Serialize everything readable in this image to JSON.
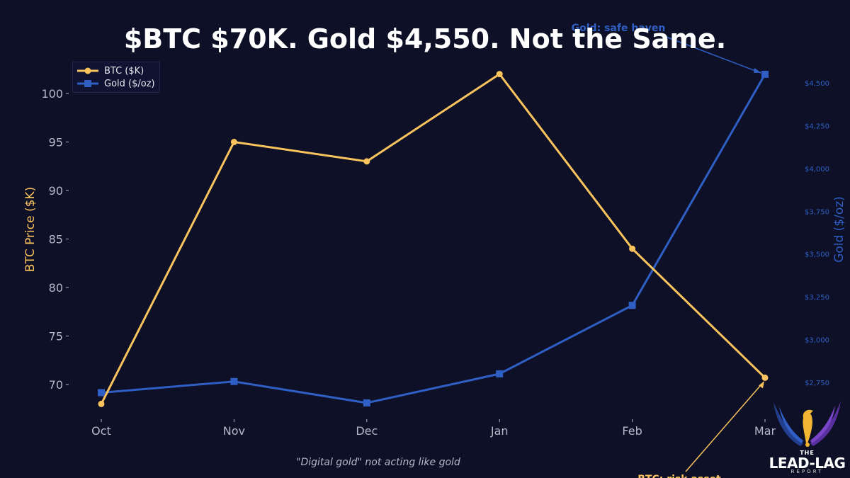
{
  "title": "$BTC $70K. Gold $4,550. Not the Same.",
  "footer_note": "\"Digital gold\" not acting like gold",
  "logo": {
    "the": "THE",
    "main": "LEAD-LAG",
    "report": "REPORT"
  },
  "colors": {
    "background": "#0e1027",
    "btc": "#f9c35e",
    "gold": "#2f5fc4",
    "tick_text": "#b6b8c8",
    "title": "#ffffff"
  },
  "chart_data": {
    "type": "line",
    "title": "$BTC $70K. Gold $4,550. Not the Same.",
    "categories": [
      "Oct",
      "Nov",
      "Dec",
      "Jan",
      "Feb",
      "Mar"
    ],
    "series": [
      {
        "name": "BTC ($K)",
        "axis": "left",
        "marker": "circle",
        "color": "#f9c35e",
        "values": [
          68,
          95,
          93,
          102,
          84,
          70.7
        ]
      },
      {
        "name": "Gold ($/oz)",
        "axis": "right",
        "marker": "square",
        "color": "#2f5fc4",
        "values": [
          2690,
          2755,
          2630,
          2800,
          3200,
          4550
        ]
      }
    ],
    "xlabel": "",
    "ylabel": "BTC Price ($K)",
    "ylabel_right": "Gold ($/oz)",
    "ylim": [
      66,
      103
    ],
    "ylim_right": [
      2620,
      4600
    ],
    "yticks": [
      70,
      75,
      80,
      85,
      90,
      95,
      100
    ],
    "yticks_right": [
      "$2,750",
      "$3,000",
      "$3,250",
      "$3,500",
      "$3,750",
      "$4,000",
      "$4,250",
      "$4,500"
    ],
    "legend": {
      "position": "upper left",
      "entries": [
        "BTC ($K)",
        "Gold ($/oz)"
      ]
    },
    "annotations": [
      {
        "text": "Gold: safe haven",
        "target": "Mar Gold",
        "color": "#2f5fc4"
      },
      {
        "text": "BTC: risk asset",
        "target": "Mar BTC",
        "color": "#f9c35e"
      }
    ],
    "grid": false
  }
}
